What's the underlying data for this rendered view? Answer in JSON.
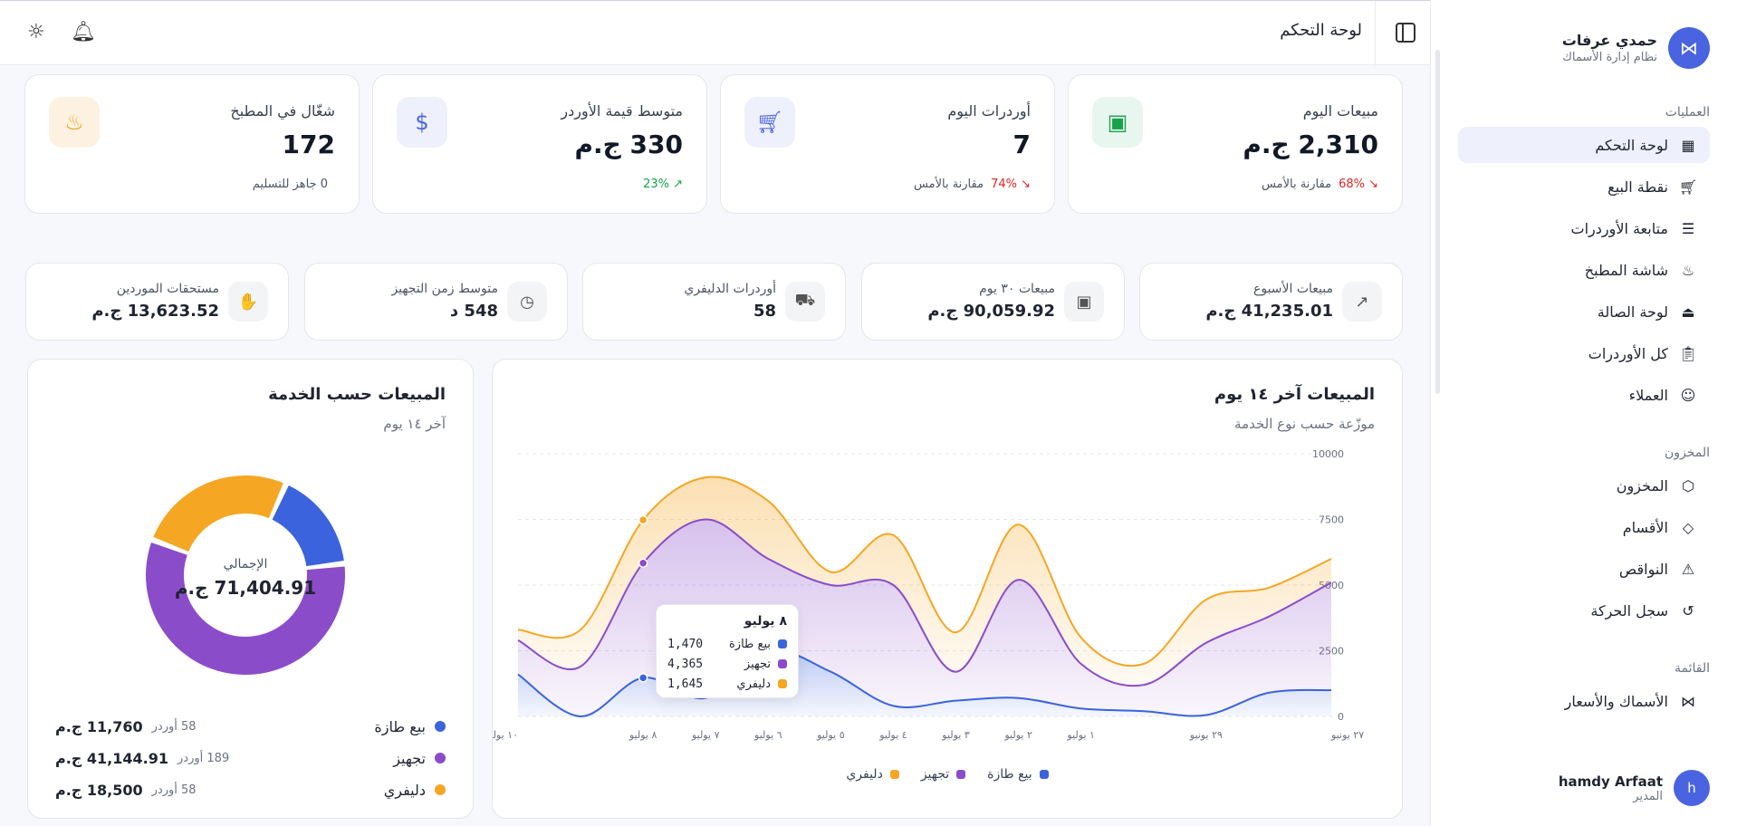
{
  "brand": {
    "name": "حمدي عرفات",
    "subtitle": "نظام إدارة الأسماك"
  },
  "sidebar": {
    "sections": [
      {
        "title": "العمليات",
        "items": [
          {
            "label": "لوحة التحكم",
            "icon": "grid-icon",
            "active": true
          },
          {
            "label": "نقطة البيع",
            "icon": "cart-icon"
          },
          {
            "label": "متابعة الأوردرات",
            "icon": "list-check-icon"
          },
          {
            "label": "شاشة المطبخ",
            "icon": "chef-hat-icon"
          },
          {
            "label": "لوحة الصالة",
            "icon": "bell-service-icon"
          },
          {
            "label": "كل الأوردرات",
            "icon": "clipboard-icon"
          },
          {
            "label": "العملاء",
            "icon": "contact-icon"
          }
        ]
      },
      {
        "title": "المخزون",
        "items": [
          {
            "label": "المخزون",
            "icon": "box-icon"
          },
          {
            "label": "الأقسام",
            "icon": "tag-icon"
          },
          {
            "label": "النواقص",
            "icon": "alert-triangle-icon"
          },
          {
            "label": "سجل الحركة",
            "icon": "history-icon"
          }
        ]
      },
      {
        "title": "القائمة",
        "items": [
          {
            "label": "الأسماك والأسعار",
            "icon": "fish-icon"
          }
        ]
      }
    ]
  },
  "user": {
    "name": "hamdy Arfaat",
    "role": "المدير",
    "initial": "h"
  },
  "header": {
    "title": "لوحة التحكم"
  },
  "kpis_top": [
    {
      "label": "مبيعات اليوم",
      "value": "2,310 ج.م",
      "delta": "68%",
      "delta_dir": "down",
      "foot": "مقارنة بالأمس",
      "icon": "wallet-icon",
      "icon_bg": "#e7f6ee",
      "icon_color": "#16a34a"
    },
    {
      "label": "أوردرات اليوم",
      "value": "7",
      "delta": "74%",
      "delta_dir": "down",
      "foot": "مقارنة بالأمس",
      "icon": "cart-icon",
      "icon_bg": "#eef0fb",
      "icon_color": "#4a63e0"
    },
    {
      "label": "متوسط قيمة الأوردر",
      "value": "330 ج.م",
      "delta": "23%",
      "delta_dir": "up",
      "foot": "",
      "icon": "receipt-icon",
      "icon_bg": "#eef0fb",
      "icon_color": "#4a63e0"
    },
    {
      "label": "شغّال في المطبخ",
      "value": "172",
      "delta": "",
      "delta_dir": "",
      "foot": "0 جاهز للتسليم",
      "icon": "chef-hat-icon",
      "icon_bg": "#fdf2e2",
      "icon_color": "#f59e0b"
    }
  ],
  "kpis_mid": [
    {
      "label": "مبيعات الأسبوع",
      "value": "41,235.01 ج.م",
      "icon": "trend-up-icon"
    },
    {
      "label": "مبيعات ٣٠ يوم",
      "value": "90,059.92 ج.م",
      "icon": "wallet-icon"
    },
    {
      "label": "أوردرات الدليفري",
      "value": "58",
      "icon": "truck-icon"
    },
    {
      "label": "متوسط زمن التجهيز",
      "value": "548 د",
      "icon": "timer-icon"
    },
    {
      "label": "مستحقات الموردين",
      "value": "13,623.52 ج.م",
      "icon": "handshake-icon"
    }
  ],
  "sales_chart": {
    "title": "المبيعات آخر ١٤ يوم",
    "subtitle": "موزّعة حسب نوع الخدمة",
    "tooltip": {
      "title": "٨ يوليو",
      "rows": [
        {
          "name": "بيع طازة",
          "value": "1,470"
        },
        {
          "name": "تجهيز",
          "value": "4,365"
        },
        {
          "name": "دليفري",
          "value": "1,645"
        }
      ]
    }
  },
  "service_chart": {
    "title": "المبيعات حسب الخدمة",
    "subtitle": "آخر ١٤ يوم",
    "total_label": "الإجمالي",
    "total_value": "71,404.91 ج.م",
    "rows": [
      {
        "name": "بيع طازة",
        "orders": "58 أوردر",
        "amount": "11,760 ج.م",
        "color": "#3b63dd"
      },
      {
        "name": "تجهيز",
        "orders": "189 أوردر",
        "amount": "41,144.91 ج.م",
        "color": "#8b4cc9"
      },
      {
        "name": "دليفري",
        "orders": "58 أوردر",
        "amount": "18,500 ج.م",
        "color": "#f5a623"
      }
    ]
  },
  "chart_data": {
    "type": "area",
    "title": "المبيعات آخر ١٤ يوم",
    "x": [
      "٢٧ يونيو",
      "٢٨ يونيو",
      "٢٩ يونيو",
      "٣٠ يونيو",
      "١ يوليو",
      "٢ يوليو",
      "٣ يوليو",
      "٤ يوليو",
      "٥ يوليو",
      "٦ يوليو",
      "٧ يوليو",
      "٨ يوليو",
      "٩ يوليو",
      "١٠ يوليو"
    ],
    "x_tick_labels": [
      "٢٧ يونيو",
      "٢٩ يونيو",
      "١ يوليو",
      "٢ يوليو",
      "٣ يوليو",
      "٤ يوليو",
      "٥ يوليو",
      "٦ يوليو",
      "٧ يوليو",
      "٨ يوليو",
      "١٠ يوليو"
    ],
    "x_reversed": true,
    "ylim": [
      0,
      10000
    ],
    "yticks": [
      0,
      2500,
      5000,
      7500,
      10000
    ],
    "stacked": true,
    "series": [
      {
        "name": "بيع طازة",
        "color": "#3b63dd",
        "values": [
          1000,
          900,
          50,
          200,
          300,
          700,
          600,
          400,
          1700,
          2500,
          700,
          1470,
          0,
          1600
        ]
      },
      {
        "name": "تجهيز",
        "color": "#8b4cc9",
        "values": [
          4100,
          2900,
          2750,
          1000,
          1700,
          4500,
          1100,
          4600,
          3300,
          3500,
          6800,
          4365,
          1900,
          1300
        ]
      },
      {
        "name": "دليفري",
        "color": "#f5a623",
        "values": [
          900,
          1100,
          1650,
          800,
          1000,
          2100,
          1500,
          1900,
          500,
          2200,
          1600,
          1645,
          1400,
          400
        ]
      }
    ],
    "legend": "bottom",
    "grid": true
  }
}
